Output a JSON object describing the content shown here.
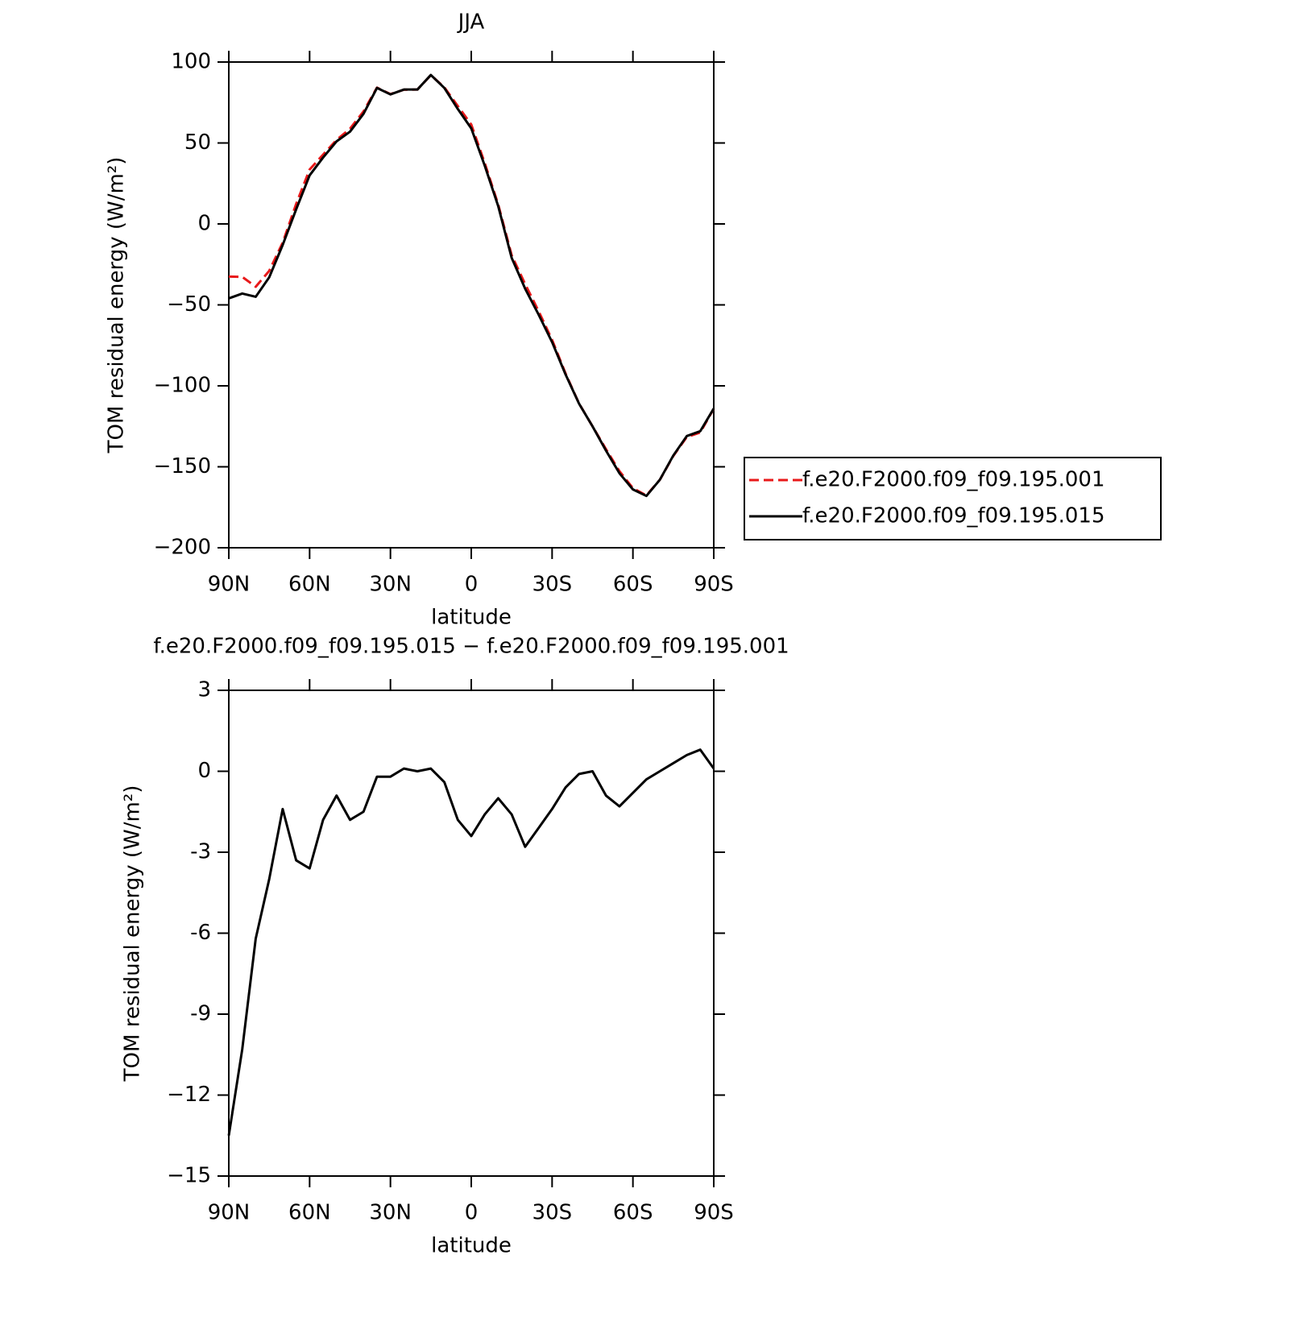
{
  "chart_data": [
    {
      "type": "line",
      "title": "JJA",
      "xlabel": "latitude",
      "ylabel": "TOM residual energy (W/m²)",
      "x": [
        90,
        85,
        80,
        75,
        70,
        65,
        60,
        55,
        50,
        45,
        40,
        35,
        30,
        25,
        20,
        15,
        10,
        5,
        0,
        -5,
        -10,
        -15,
        -20,
        -25,
        -30,
        -35,
        -40,
        -45,
        -50,
        -55,
        -60,
        -65,
        -70,
        -75,
        -80,
        -85,
        -90
      ],
      "xlim": [
        90,
        -90
      ],
      "xticks": [
        {
          "value": 90,
          "label": "90N"
        },
        {
          "value": 60,
          "label": "60N"
        },
        {
          "value": 30,
          "label": "30N"
        },
        0,
        {
          "value": -30,
          "label": "30S"
        },
        {
          "value": -60,
          "label": "60S"
        },
        {
          "value": -90,
          "label": "90S"
        }
      ],
      "ylim": [
        -200,
        100
      ],
      "yticks": [
        100,
        50,
        0,
        {
          "value": -50,
          "label": "−50"
        },
        {
          "value": -100,
          "label": "−100"
        },
        {
          "value": -150,
          "label": "−150"
        },
        {
          "value": -200,
          "label": "−200"
        }
      ],
      "legend": "right",
      "series": [
        {
          "name": "f.e20.F2000.f09_f09.195.001",
          "color": "#e8191a",
          "dash": true,
          "values": [
            -32.5,
            -32.7,
            -38.8,
            -29,
            -11.6,
            12.3,
            33.6,
            42.8,
            51.9,
            58.8,
            69.5,
            84.2,
            80.2,
            82.9,
            83,
            91.9,
            84.4,
            72.8,
            61.4,
            37.6,
            12,
            -19.4,
            -37.2,
            -53.9,
            -71.6,
            -92.4,
            -110.9,
            -125,
            -139.1,
            -152.7,
            -163.2,
            -167.7,
            -158,
            -143.3,
            -131.6,
            -128.8,
            -114.1
          ]
        },
        {
          "name": "f.e20.F2000.f09_f09.195.015",
          "color": "#000000",
          "dash": false,
          "values": [
            -46,
            -43,
            -45,
            -33,
            -13,
            9,
            30,
            41,
            51,
            57,
            68,
            84,
            80,
            83,
            83,
            92,
            84,
            71,
            59,
            36,
            11,
            -21,
            -40,
            -56,
            -73,
            -93,
            -111,
            -125,
            -140,
            -154,
            -164,
            -168,
            -158,
            -143,
            -131,
            -128,
            -114
          ]
        }
      ]
    },
    {
      "type": "line",
      "title": "f.e20.F2000.f09_f09.195.015 − f.e20.F2000.f09_f09.195.001",
      "xlabel": "latitude",
      "ylabel": "TOM residual energy (W/m²)",
      "x": [
        90,
        85,
        80,
        75,
        70,
        65,
        60,
        55,
        50,
        45,
        40,
        35,
        30,
        25,
        20,
        15,
        10,
        5,
        0,
        -5,
        -10,
        -15,
        -20,
        -25,
        -30,
        -35,
        -40,
        -45,
        -50,
        -55,
        -60,
        -65,
        -70,
        -75,
        -80,
        -85,
        -90
      ],
      "xlim": [
        90,
        -90
      ],
      "xticks": [
        {
          "value": 90,
          "label": "90N"
        },
        {
          "value": 60,
          "label": "60N"
        },
        {
          "value": 30,
          "label": "30N"
        },
        0,
        {
          "value": -30,
          "label": "30S"
        },
        {
          "value": -60,
          "label": "60S"
        },
        {
          "value": -90,
          "label": "90S"
        }
      ],
      "ylim": [
        -15,
        3
      ],
      "yticks": [
        3,
        0,
        -3,
        -6,
        -9,
        {
          "value": -12,
          "label": "−12"
        },
        {
          "value": -15,
          "label": "−15"
        }
      ],
      "series": [
        {
          "color": "#000000",
          "values": [
            -13.5,
            -10.3,
            -6.2,
            -4.0,
            -1.4,
            -3.3,
            -3.6,
            -1.8,
            -0.9,
            -1.8,
            -1.5,
            -0.2,
            -0.2,
            0.1,
            0.0,
            0.1,
            -0.4,
            -1.8,
            -2.4,
            -1.6,
            -1.0,
            -1.6,
            -2.8,
            -2.1,
            -1.4,
            -0.6,
            -0.1,
            0.0,
            -0.9,
            -1.3,
            -0.8,
            -0.3,
            0.0,
            0.3,
            0.6,
            0.8,
            0.1
          ]
        }
      ]
    }
  ]
}
